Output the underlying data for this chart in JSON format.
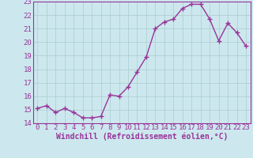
{
  "x": [
    0,
    1,
    2,
    3,
    4,
    5,
    6,
    7,
    8,
    9,
    10,
    11,
    12,
    13,
    14,
    15,
    16,
    17,
    18,
    19,
    20,
    21,
    22,
    23
  ],
  "y": [
    15.1,
    15.3,
    14.8,
    15.1,
    14.8,
    14.4,
    14.4,
    14.5,
    16.1,
    16.0,
    16.7,
    17.8,
    18.9,
    21.0,
    21.5,
    21.7,
    22.5,
    22.8,
    22.8,
    21.7,
    20.1,
    21.4,
    20.7,
    19.7
  ],
  "ylim": [
    14,
    23
  ],
  "yticks": [
    14,
    15,
    16,
    17,
    18,
    19,
    20,
    21,
    22,
    23
  ],
  "xlabel": "Windchill (Refroidissement éolien,°C)",
  "line_color": "#993399",
  "marker": "+",
  "bg_color": "#cce8ee",
  "grid_color": "#aacccc",
  "border_color": "#993399",
  "tick_label_color": "#993399",
  "xlabel_color": "#993399",
  "xlabel_fontsize": 7.0,
  "tick_fontsize": 6.5,
  "linewidth": 1.0,
  "markersize": 4,
  "markeredgewidth": 1.0
}
